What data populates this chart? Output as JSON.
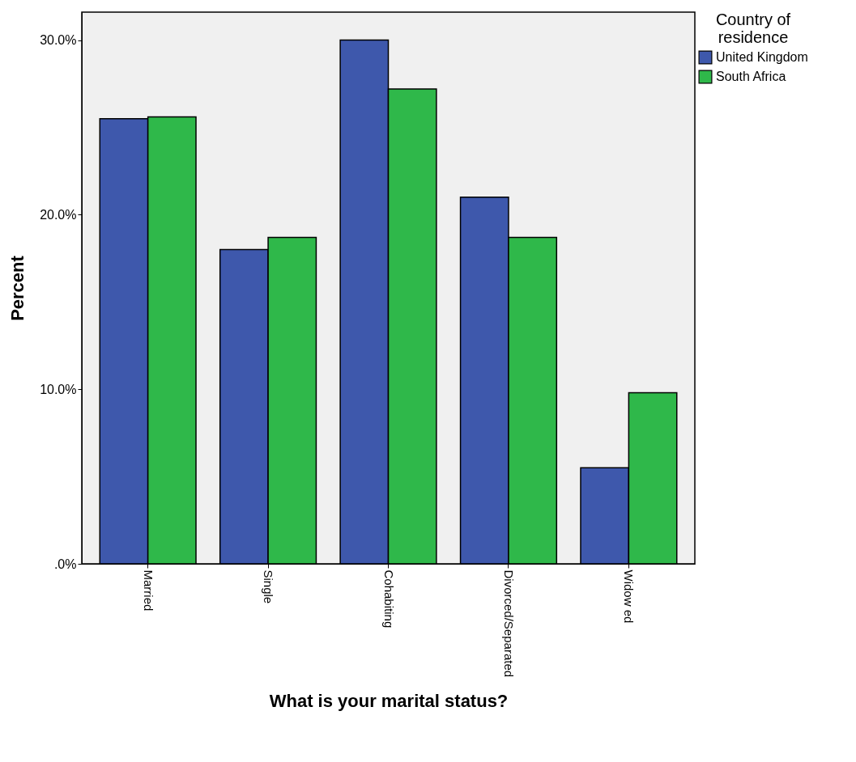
{
  "chart_data": {
    "type": "bar",
    "xlabel": "What is your marital status?",
    "ylabel": "Percent",
    "legend_title": "Country of residence",
    "categories": [
      "Married",
      "Single",
      "Cohabiting",
      "Divorced/Separated",
      "Widow ed"
    ],
    "series": [
      {
        "name": "United Kingdom",
        "color": "#3e58ac",
        "values": [
          25.5,
          18.0,
          30.0,
          21.0,
          5.5
        ]
      },
      {
        "name": "South Africa",
        "color": "#2fb84a",
        "values": [
          25.6,
          18.7,
          27.2,
          18.7,
          9.8
        ]
      }
    ],
    "ylim": [
      0,
      31.6
    ],
    "yticks": [
      {
        "value": 0,
        "label": ".0%"
      },
      {
        "value": 10,
        "label": "10.0%"
      },
      {
        "value": 20,
        "label": "20.0%"
      },
      {
        "value": 30,
        "label": "30.0%"
      }
    ],
    "grid": false,
    "legend": "top right"
  }
}
